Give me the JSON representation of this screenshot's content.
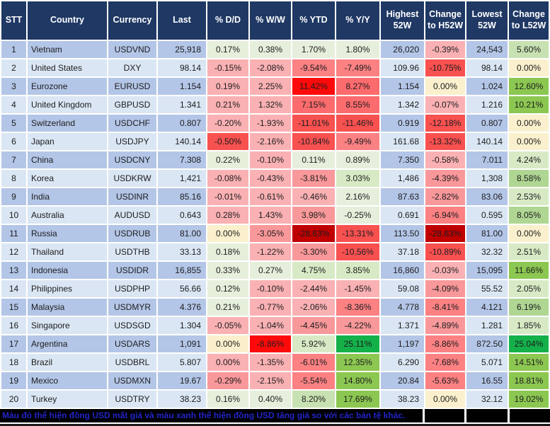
{
  "palette": {
    "header_bg": "#1F3864",
    "header_text": "#FFFFFF",
    "grid": "#FFFFFF",
    "row_blue": "#B4C6E7",
    "row_light": "#DAE6F3",
    "g0": "#E6EFDB",
    "g1": "#D8EAC5",
    "g2": "#C8E1B2",
    "g3": "#AFD692",
    "g4": "#8CC751",
    "g5": "#14B14B",
    "y0": "#FBF0CD",
    "r1": "#FAB1B3",
    "r2": "#F9989A",
    "r3": "#FB8183",
    "r35": "#FC6B6D",
    "r4": "#F75150",
    "r5": "#FE0A0A",
    "r6": "#C00000",
    "footer_bg": "#000000",
    "footer_text": "#2224C8"
  },
  "footer": {
    "note": "Màu đỏ thể hiện đồng USD mất giá và màu xanh thể hiện đồng USD tăng giá so với các bản tệ khác."
  },
  "chart_data": {
    "type": "table",
    "columns": [
      "STT",
      "Country",
      "Currency",
      "Last",
      "% D/D",
      "% W/W",
      "% YTD",
      "% Y/Y",
      "Highest 52W",
      "Change to H52W",
      "Lowest 52W",
      "Change to L52W"
    ],
    "rows": [
      {
        "stt": "1",
        "country": "Vietnam",
        "currency": "USDVND",
        "last": "25,918",
        "dd": {
          "v": "0.17%",
          "c": "g0"
        },
        "ww": {
          "v": "0.38%",
          "c": "g0"
        },
        "ytd": {
          "v": "1.70%",
          "c": "g0"
        },
        "yy": {
          "v": "1.80%",
          "c": "g0"
        },
        "h52": "26,020",
        "ch52": {
          "v": "-0.39%",
          "c": "r1"
        },
        "l52": "24,543",
        "cl52": {
          "v": "5.60%",
          "c": "g2"
        }
      },
      {
        "stt": "2",
        "country": "United States",
        "currency": "DXY",
        "last": "98.14",
        "dd": {
          "v": "-0.15%",
          "c": "r1"
        },
        "ww": {
          "v": "-2.08%",
          "c": "r1"
        },
        "ytd": {
          "v": "-9.54%",
          "c": "r3"
        },
        "yy": {
          "v": "-7.49%",
          "c": "r3"
        },
        "h52": "109.96",
        "ch52": {
          "v": "-10.75%",
          "c": "r4"
        },
        "l52": "98.14",
        "cl52": {
          "v": "0.00%",
          "c": "y0"
        }
      },
      {
        "stt": "3",
        "country": "Eurozone",
        "currency": "EURUSD",
        "last": "1.154",
        "dd": {
          "v": "0.19%",
          "c": "r1"
        },
        "ww": {
          "v": "2.25%",
          "c": "r1"
        },
        "ytd": {
          "v": "11.42%",
          "c": "r5"
        },
        "yy": {
          "v": "8.27%",
          "c": "r35"
        },
        "h52": "1.154",
        "ch52": {
          "v": "0.00%",
          "c": "y0"
        },
        "l52": "1.024",
        "cl52": {
          "v": "12.60%",
          "c": "g4"
        }
      },
      {
        "stt": "4",
        "country": "United Kingdom",
        "currency": "GBPUSD",
        "last": "1.341",
        "dd": {
          "v": "0.21%",
          "c": "r1"
        },
        "ww": {
          "v": "1.32%",
          "c": "r1"
        },
        "ytd": {
          "v": "7.15%",
          "c": "r35"
        },
        "yy": {
          "v": "8.55%",
          "c": "r35"
        },
        "h52": "1.342",
        "ch52": {
          "v": "-0.07%",
          "c": "r1"
        },
        "l52": "1.216",
        "cl52": {
          "v": "10.21%",
          "c": "g4"
        }
      },
      {
        "stt": "5",
        "country": "Switzerland",
        "currency": "USDCHF",
        "last": "0.807",
        "dd": {
          "v": "-0.20%",
          "c": "r1"
        },
        "ww": {
          "v": "-1.93%",
          "c": "r1"
        },
        "ytd": {
          "v": "-11.01%",
          "c": "r4"
        },
        "yy": {
          "v": "-11.46%",
          "c": "r4"
        },
        "h52": "0.919",
        "ch52": {
          "v": "-12.18%",
          "c": "r4"
        },
        "l52": "0.807",
        "cl52": {
          "v": "0.00%",
          "c": "y0"
        }
      },
      {
        "stt": "6",
        "country": "Japan",
        "currency": "USDJPY",
        "last": "140.14",
        "dd": {
          "v": "-0.50%",
          "c": "r4"
        },
        "ww": {
          "v": "-2.16%",
          "c": "r1"
        },
        "ytd": {
          "v": "-10.84%",
          "c": "r4"
        },
        "yy": {
          "v": "-9.49%",
          "c": "r3"
        },
        "h52": "161.68",
        "ch52": {
          "v": "-13.32%",
          "c": "r4"
        },
        "l52": "140.14",
        "cl52": {
          "v": "0.00%",
          "c": "y0"
        }
      },
      {
        "stt": "7",
        "country": "China",
        "currency": "USDCNY",
        "last": "7.308",
        "dd": {
          "v": "0.22%",
          "c": "g0"
        },
        "ww": {
          "v": "-0.10%",
          "c": "r1"
        },
        "ytd": {
          "v": "0.11%",
          "c": "g0"
        },
        "yy": {
          "v": "0.89%",
          "c": "g0"
        },
        "h52": "7.350",
        "ch52": {
          "v": "-0.58%",
          "c": "r1"
        },
        "l52": "7.011",
        "cl52": {
          "v": "4.24%",
          "c": "g1"
        }
      },
      {
        "stt": "8",
        "country": "Korea",
        "currency": "USDKRW",
        "last": "1,421",
        "dd": {
          "v": "-0.08%",
          "c": "r1"
        },
        "ww": {
          "v": "-0.43%",
          "c": "r1"
        },
        "ytd": {
          "v": "-3.81%",
          "c": "r2"
        },
        "yy": {
          "v": "3.03%",
          "c": "g1"
        },
        "h52": "1,486",
        "ch52": {
          "v": "-4.39%",
          "c": "r2"
        },
        "l52": "1,308",
        "cl52": {
          "v": "8.58%",
          "c": "g3"
        }
      },
      {
        "stt": "9",
        "country": "India",
        "currency": "USDINR",
        "last": "85.16",
        "dd": {
          "v": "-0.01%",
          "c": "r1"
        },
        "ww": {
          "v": "-0.61%",
          "c": "r1"
        },
        "ytd": {
          "v": "-0.46%",
          "c": "r1"
        },
        "yy": {
          "v": "2.16%",
          "c": "g0"
        },
        "h52": "87.63",
        "ch52": {
          "v": "-2.82%",
          "c": "r2"
        },
        "l52": "83.06",
        "cl52": {
          "v": "2.53%",
          "c": "g1"
        }
      },
      {
        "stt": "10",
        "country": "Australia",
        "currency": "AUDUSD",
        "last": "0.643",
        "dd": {
          "v": "0.28%",
          "c": "r1"
        },
        "ww": {
          "v": "1.43%",
          "c": "r1"
        },
        "ytd": {
          "v": "3.98%",
          "c": "r2"
        },
        "yy": {
          "v": "-0.25%",
          "c": "g0"
        },
        "h52": "0.691",
        "ch52": {
          "v": "-6.94%",
          "c": "r3"
        },
        "l52": "0.595",
        "cl52": {
          "v": "8.05%",
          "c": "g3"
        }
      },
      {
        "stt": "11",
        "country": "Russia",
        "currency": "USDRUB",
        "last": "81.00",
        "dd": {
          "v": "0.00%",
          "c": "y0"
        },
        "ww": {
          "v": "-3.05%",
          "c": "r2"
        },
        "ytd": {
          "v": "-28.63%",
          "c": "r6"
        },
        "yy": {
          "v": "-13.31%",
          "c": "r4"
        },
        "h52": "113.50",
        "ch52": {
          "v": "-28.63%",
          "c": "r6"
        },
        "l52": "81.00",
        "cl52": {
          "v": "0.00%",
          "c": "y0"
        }
      },
      {
        "stt": "12",
        "country": "Thailand",
        "currency": "USDTHB",
        "last": "33.13",
        "dd": {
          "v": "0.18%",
          "c": "g0"
        },
        "ww": {
          "v": "-1.22%",
          "c": "r1"
        },
        "ytd": {
          "v": "-3.30%",
          "c": "r2"
        },
        "yy": {
          "v": "-10.56%",
          "c": "r4"
        },
        "h52": "37.18",
        "ch52": {
          "v": "-10.89%",
          "c": "r4"
        },
        "l52": "32.32",
        "cl52": {
          "v": "2.51%",
          "c": "g1"
        }
      },
      {
        "stt": "13",
        "country": "Indonesia",
        "currency": "USDIDR",
        "last": "16,855",
        "dd": {
          "v": "0.33%",
          "c": "g0"
        },
        "ww": {
          "v": "0.27%",
          "c": "g0"
        },
        "ytd": {
          "v": "4.75%",
          "c": "g1"
        },
        "yy": {
          "v": "3.85%",
          "c": "g1"
        },
        "h52": "16,860",
        "ch52": {
          "v": "-0.03%",
          "c": "r1"
        },
        "l52": "15,095",
        "cl52": {
          "v": "11.66%",
          "c": "g4"
        }
      },
      {
        "stt": "14",
        "country": "Philippines",
        "currency": "USDPHP",
        "last": "56.66",
        "dd": {
          "v": "0.12%",
          "c": "g0"
        },
        "ww": {
          "v": "-0.10%",
          "c": "r1"
        },
        "ytd": {
          "v": "-2.44%",
          "c": "r1"
        },
        "yy": {
          "v": "-1.45%",
          "c": "r1"
        },
        "h52": "59.08",
        "ch52": {
          "v": "-4.09%",
          "c": "r2"
        },
        "l52": "55.52",
        "cl52": {
          "v": "2.05%",
          "c": "g1"
        }
      },
      {
        "stt": "15",
        "country": "Malaysia",
        "currency": "USDMYR",
        "last": "4.376",
        "dd": {
          "v": "0.21%",
          "c": "g0"
        },
        "ww": {
          "v": "-0.77%",
          "c": "r1"
        },
        "ytd": {
          "v": "-2.06%",
          "c": "r1"
        },
        "yy": {
          "v": "-8.36%",
          "c": "r3"
        },
        "h52": "4.778",
        "ch52": {
          "v": "-8.41%",
          "c": "r3"
        },
        "l52": "4.121",
        "cl52": {
          "v": "6.19%",
          "c": "g3"
        }
      },
      {
        "stt": "16",
        "country": "Singapore",
        "currency": "USDSGD",
        "last": "1.304",
        "dd": {
          "v": "-0.05%",
          "c": "r1"
        },
        "ww": {
          "v": "-1.04%",
          "c": "r1"
        },
        "ytd": {
          "v": "-4.45%",
          "c": "r2"
        },
        "yy": {
          "v": "-4.22%",
          "c": "r2"
        },
        "h52": "1.371",
        "ch52": {
          "v": "-4.89%",
          "c": "r2"
        },
        "l52": "1.281",
        "cl52": {
          "v": "1.85%",
          "c": "g1"
        }
      },
      {
        "stt": "17",
        "country": "Argentina",
        "currency": "USDARS",
        "last": "1,091",
        "dd": {
          "v": "0.00%",
          "c": "y0"
        },
        "ww": {
          "v": "-8.86%",
          "c": "r5"
        },
        "ytd": {
          "v": "5.92%",
          "c": "g1"
        },
        "yy": {
          "v": "25.11%",
          "c": "g5"
        },
        "h52": "1,197",
        "ch52": {
          "v": "-8.86%",
          "c": "r3"
        },
        "l52": "872.50",
        "cl52": {
          "v": "25.04%",
          "c": "g5"
        }
      },
      {
        "stt": "18",
        "country": "Brazil",
        "currency": "USDBRL",
        "last": "5.807",
        "dd": {
          "v": "0.00%",
          "c": "r1"
        },
        "ww": {
          "v": "-1.35%",
          "c": "r1"
        },
        "ytd": {
          "v": "-6.01%",
          "c": "r3"
        },
        "yy": {
          "v": "12.35%",
          "c": "g4"
        },
        "h52": "6.290",
        "ch52": {
          "v": "-7.68%",
          "c": "r3"
        },
        "l52": "5.071",
        "cl52": {
          "v": "14.51%",
          "c": "g4"
        }
      },
      {
        "stt": "19",
        "country": "Mexico",
        "currency": "USDMXN",
        "last": "19.67",
        "dd": {
          "v": "-0.29%",
          "c": "r2"
        },
        "ww": {
          "v": "-2.15%",
          "c": "r1"
        },
        "ytd": {
          "v": "-5.54%",
          "c": "r3"
        },
        "yy": {
          "v": "14.80%",
          "c": "g4"
        },
        "h52": "20.84",
        "ch52": {
          "v": "-5.63%",
          "c": "r3"
        },
        "l52": "16.55",
        "cl52": {
          "v": "18.81%",
          "c": "g4"
        }
      },
      {
        "stt": "20",
        "country": "Turkey",
        "currency": "USDTRY",
        "last": "38.23",
        "dd": {
          "v": "0.16%",
          "c": "g0"
        },
        "ww": {
          "v": "0.40%",
          "c": "g0"
        },
        "ytd": {
          "v": "8.20%",
          "c": "g2"
        },
        "yy": {
          "v": "17.69%",
          "c": "g4"
        },
        "h52": "38.23",
        "ch52": {
          "v": "0.00%",
          "c": "y0"
        },
        "l52": "32.12",
        "cl52": {
          "v": "19.02%",
          "c": "g4"
        }
      }
    ]
  }
}
